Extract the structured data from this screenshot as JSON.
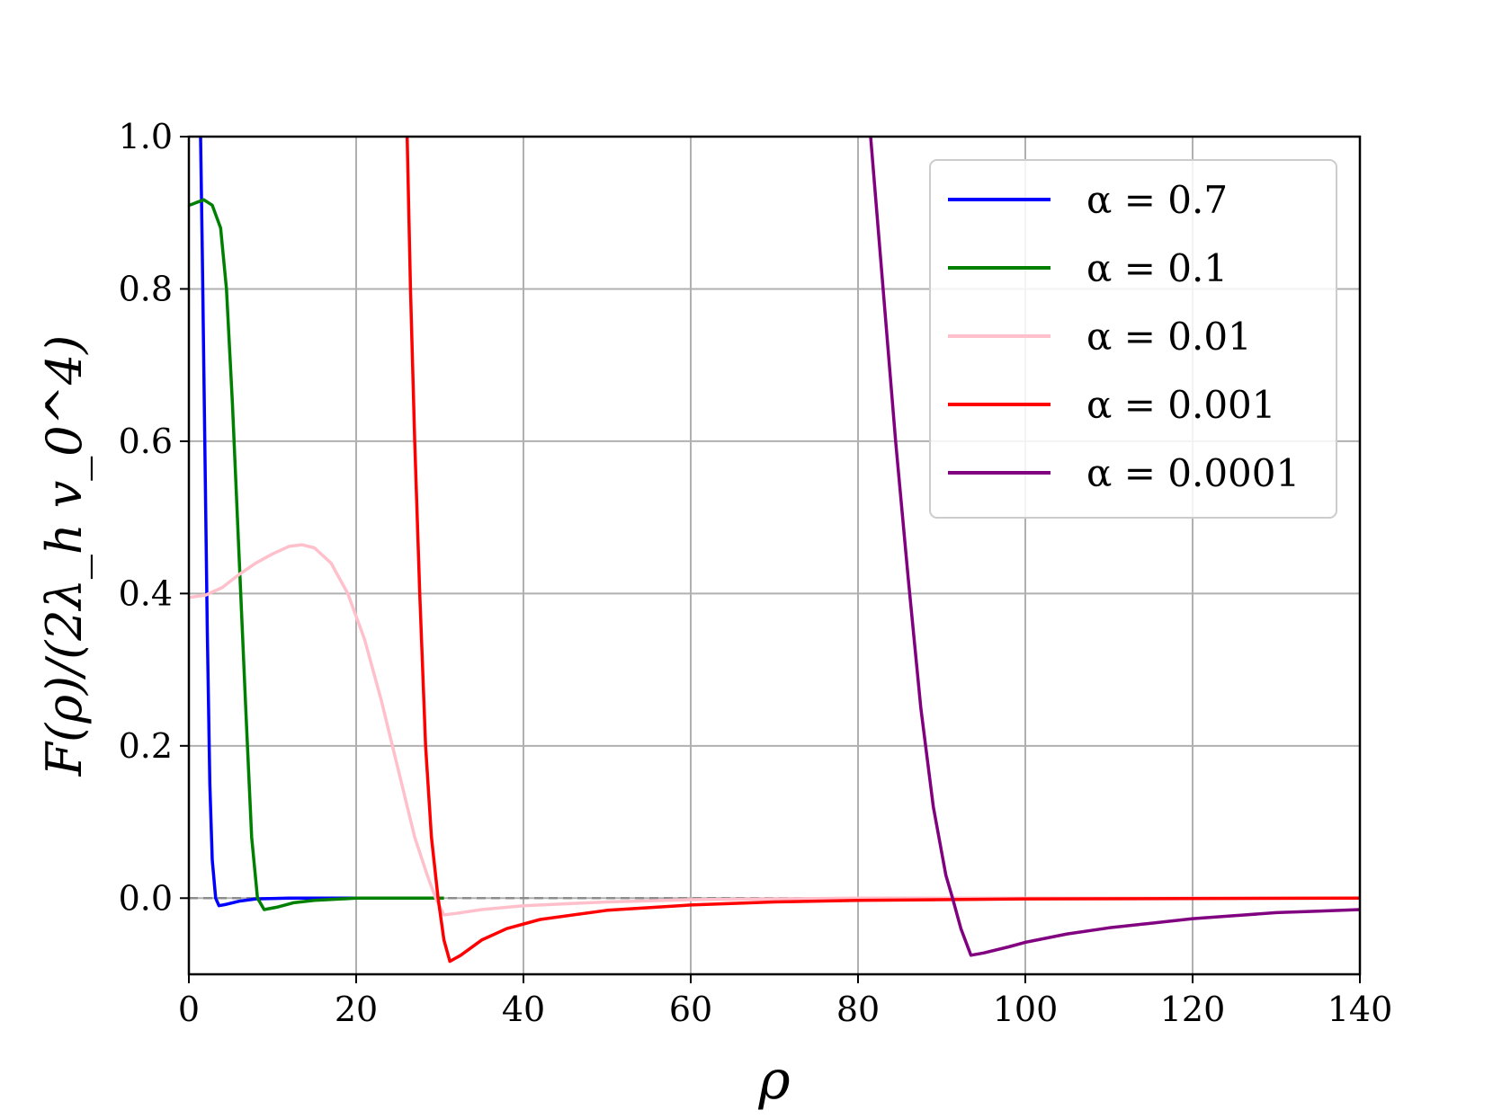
{
  "chart_data": {
    "type": "line",
    "title": "",
    "xlabel": "ρ",
    "ylabel": "F(ρ)/(2λ_h v_0^4)",
    "xlim": [
      0,
      140
    ],
    "ylim": [
      -0.1,
      1.0
    ],
    "grid": true,
    "legend_position": "top-right",
    "x_ticks": [
      "0",
      "20",
      "40",
      "60",
      "80",
      "100",
      "120",
      "140"
    ],
    "y_ticks": [
      "0.0",
      "0.2",
      "0.4",
      "0.6",
      "0.8",
      "1.0"
    ],
    "reference_line": {
      "y": 0.0,
      "style": "dashed",
      "color": "#8c8c8c"
    },
    "series": [
      {
        "name": "α = 0.7",
        "color": "#0000ff",
        "points": [
          [
            1.4,
            1.0
          ],
          [
            1.6,
            0.85
          ],
          [
            1.9,
            0.6
          ],
          [
            2.2,
            0.35
          ],
          [
            2.5,
            0.15
          ],
          [
            2.8,
            0.05
          ],
          [
            3.2,
            0.0
          ],
          [
            3.6,
            -0.01
          ],
          [
            4.5,
            -0.008
          ],
          [
            6,
            -0.004
          ],
          [
            8,
            -0.001
          ],
          [
            12,
            0.0
          ],
          [
            20,
            0.0
          ],
          [
            30,
            0.0
          ]
        ]
      },
      {
        "name": "α = 0.1",
        "color": "#008000",
        "points": [
          [
            0.1,
            0.91
          ],
          [
            0.8,
            0.913
          ],
          [
            1.8,
            0.917
          ],
          [
            2.8,
            0.91
          ],
          [
            3.8,
            0.88
          ],
          [
            4.5,
            0.8
          ],
          [
            5.2,
            0.65
          ],
          [
            6,
            0.45
          ],
          [
            6.8,
            0.25
          ],
          [
            7.5,
            0.08
          ],
          [
            8.2,
            0.0
          ],
          [
            9,
            -0.015
          ],
          [
            10.5,
            -0.012
          ],
          [
            12.5,
            -0.006
          ],
          [
            15,
            -0.003
          ],
          [
            20,
            0.0
          ],
          [
            30.5,
            0.0
          ]
        ]
      },
      {
        "name": "α = 0.01",
        "color": "#ffc0cb",
        "points": [
          [
            0.1,
            0.395
          ],
          [
            2,
            0.398
          ],
          [
            4,
            0.408
          ],
          [
            6,
            0.425
          ],
          [
            8,
            0.44
          ],
          [
            10,
            0.452
          ],
          [
            12,
            0.462
          ],
          [
            13.5,
            0.464
          ],
          [
            15,
            0.46
          ],
          [
            17,
            0.44
          ],
          [
            19,
            0.4
          ],
          [
            21,
            0.34
          ],
          [
            23,
            0.26
          ],
          [
            25,
            0.17
          ],
          [
            27,
            0.08
          ],
          [
            28.5,
            0.03
          ],
          [
            29.5,
            0.0
          ],
          [
            30.5,
            -0.022
          ],
          [
            32,
            -0.02
          ],
          [
            35,
            -0.015
          ],
          [
            40,
            -0.01
          ],
          [
            50,
            -0.005
          ],
          [
            60,
            -0.002
          ],
          [
            80,
            0.0
          ],
          [
            140,
            0.0
          ]
        ]
      },
      {
        "name": "α = 0.001",
        "color": "#ff0000",
        "points": [
          [
            26.1,
            1.0
          ],
          [
            26.5,
            0.8
          ],
          [
            27,
            0.6
          ],
          [
            27.6,
            0.4
          ],
          [
            28.3,
            0.2
          ],
          [
            29,
            0.08
          ],
          [
            29.8,
            0.0
          ],
          [
            30.5,
            -0.055
          ],
          [
            31.2,
            -0.083
          ],
          [
            32.5,
            -0.075
          ],
          [
            35,
            -0.055
          ],
          [
            38,
            -0.04
          ],
          [
            42,
            -0.028
          ],
          [
            50,
            -0.016
          ],
          [
            60,
            -0.009
          ],
          [
            70,
            -0.005
          ],
          [
            80,
            -0.003
          ],
          [
            100,
            -0.001
          ],
          [
            140,
            0.0
          ]
        ]
      },
      {
        "name": "α = 0.0001",
        "color": "#800080",
        "points": [
          [
            81.5,
            1.0
          ],
          [
            83,
            0.8
          ],
          [
            84.5,
            0.6
          ],
          [
            86,
            0.42
          ],
          [
            87.5,
            0.25
          ],
          [
            89,
            0.12
          ],
          [
            90.5,
            0.03
          ],
          [
            91.3,
            0.0
          ],
          [
            92.3,
            -0.04
          ],
          [
            93.5,
            -0.075
          ],
          [
            95,
            -0.072
          ],
          [
            98,
            -0.064
          ],
          [
            100,
            -0.058
          ],
          [
            105,
            -0.047
          ],
          [
            110,
            -0.039
          ],
          [
            115,
            -0.033
          ],
          [
            120,
            -0.027
          ],
          [
            125,
            -0.023
          ],
          [
            130,
            -0.019
          ],
          [
            135,
            -0.017
          ],
          [
            140,
            -0.015
          ]
        ]
      }
    ]
  }
}
